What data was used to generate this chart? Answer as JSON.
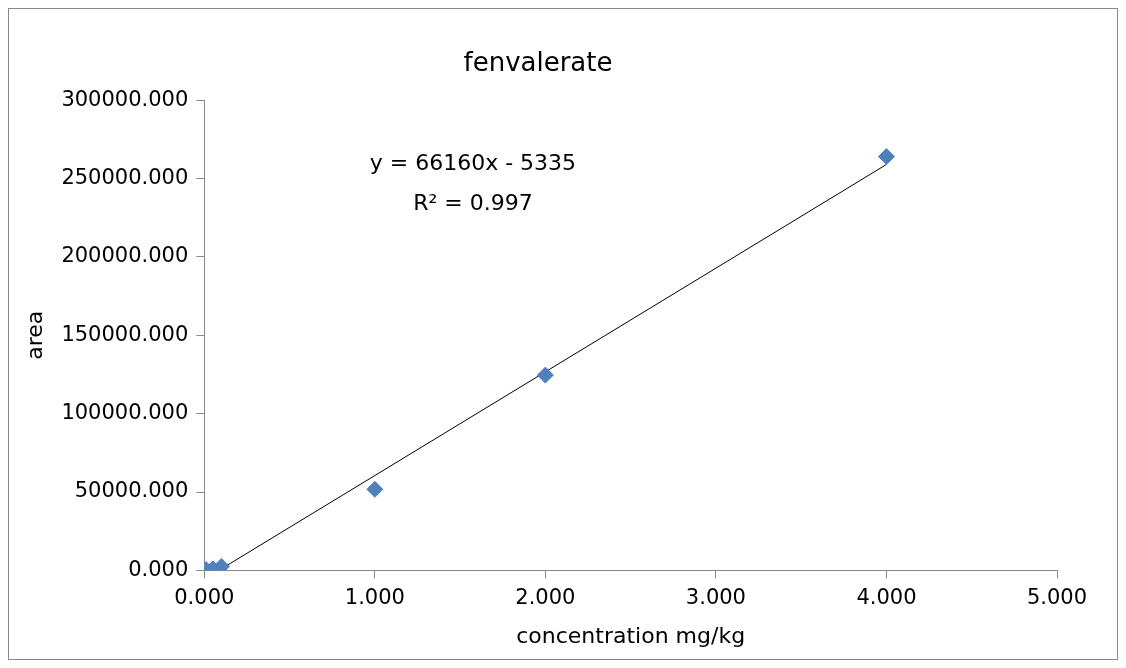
{
  "chart_data": {
    "type": "scatter",
    "title": "fenvalerate",
    "xlabel": "concentration mg/kg",
    "ylabel": "area",
    "annotations": [
      "y = 66160x - 5335",
      "R² = 0.997"
    ],
    "series": [
      {
        "color": "#4f81bd",
        "x": [
          0.01,
          0.05,
          0.1,
          1,
          2,
          4
        ],
        "values": [
          500,
          1000,
          2500,
          51700,
          124600,
          264000
        ],
        "marker": "diamond"
      },
      {
        "type": "line",
        "color": "#000000",
        "x": [
          0.1,
          4
        ],
        "values": [
          1000,
          259000
        ],
        "marker": "none",
        "line_style": "solid"
      }
    ],
    "xlim": [
      0,
      5
    ],
    "xticks": [
      {
        "value": 0,
        "label": "0.000"
      },
      {
        "value": 1,
        "label": "1.000"
      },
      {
        "value": 2,
        "label": "2.000"
      },
      {
        "value": 3,
        "label": "3.000"
      },
      {
        "value": 4,
        "label": "4.000"
      },
      {
        "value": 5,
        "label": "5.000"
      }
    ],
    "ylim": [
      0,
      300000
    ],
    "yticks": [
      {
        "value": 0,
        "label": "0.000"
      },
      {
        "value": 50000,
        "label": "50000.000"
      },
      {
        "value": 100000,
        "label": "100000.000"
      },
      {
        "value": 150000,
        "label": "150000.000"
      },
      {
        "value": 200000,
        "label": "200000.000"
      },
      {
        "value": 250000,
        "label": "250000.000"
      },
      {
        "value": 300000,
        "label": "300000.000"
      }
    ],
    "grid": false,
    "legend": false
  }
}
